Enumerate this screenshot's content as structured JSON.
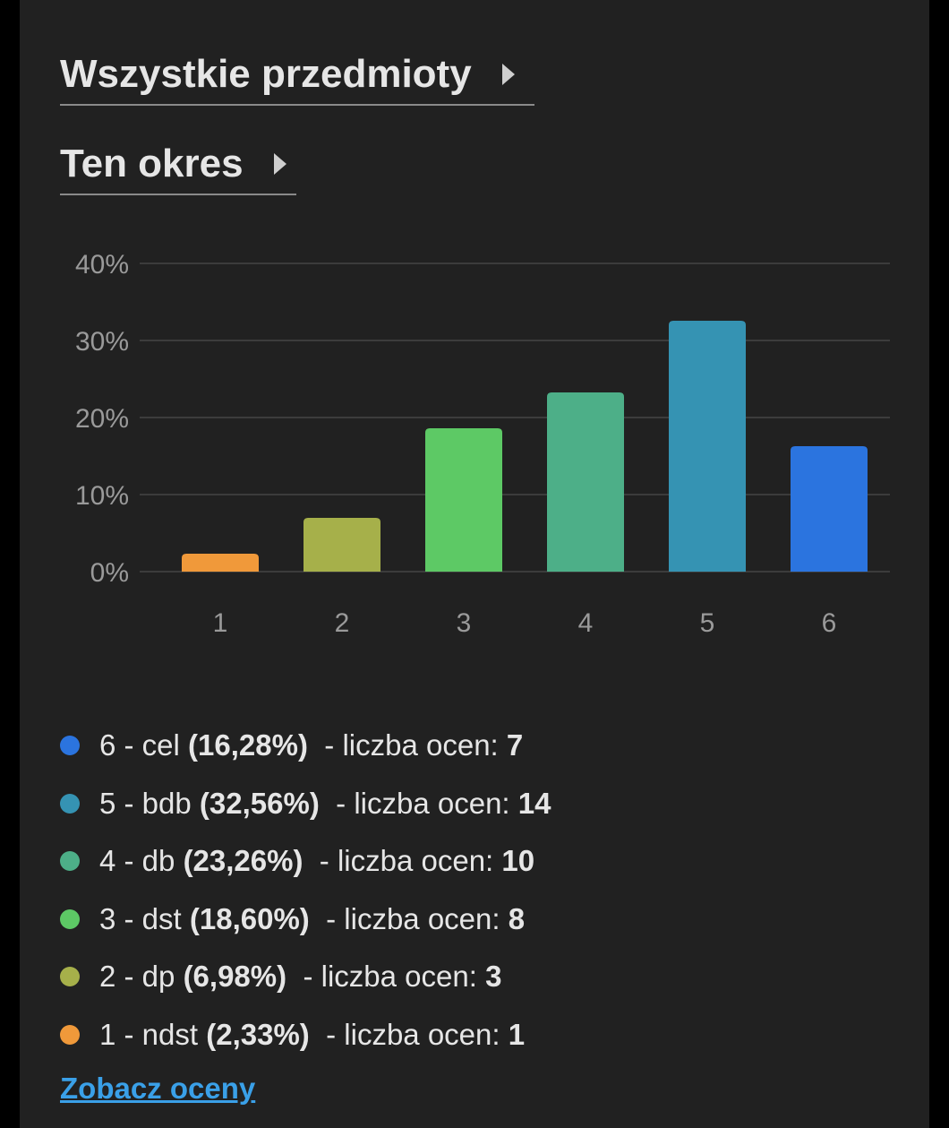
{
  "filters": {
    "subject_label": "Wszystkie przedmioty",
    "period_label": "Ten okres"
  },
  "chart_data": {
    "type": "bar",
    "categories": [
      "1",
      "2",
      "3",
      "4",
      "5",
      "6"
    ],
    "values": [
      2.33,
      6.98,
      18.6,
      23.26,
      32.56,
      16.28
    ],
    "colors": [
      "#f0993a",
      "#a6b04a",
      "#5dc965",
      "#4daf88",
      "#3593b3",
      "#2b74df"
    ],
    "y_ticks": [
      "0%",
      "10%",
      "20%",
      "30%",
      "40%"
    ],
    "ylim": [
      0,
      40
    ],
    "grid": true
  },
  "legend": [
    {
      "color": "#2b74df",
      "name": "6 - cel",
      "percent": "(16,28%)",
      "count_label": "- liczba ocen:",
      "count": "7"
    },
    {
      "color": "#3593b3",
      "name": "5 - bdb",
      "percent": "(32,56%)",
      "count_label": "- liczba ocen:",
      "count": "14"
    },
    {
      "color": "#4daf88",
      "name": "4 - db",
      "percent": "(23,26%)",
      "count_label": "- liczba ocen:",
      "count": "10"
    },
    {
      "color": "#5dc965",
      "name": "3 - dst",
      "percent": "(18,60%)",
      "count_label": "- liczba ocen:",
      "count": "8"
    },
    {
      "color": "#a6b04a",
      "name": "2 - dp",
      "percent": "(6,98%)",
      "count_label": "- liczba ocen:",
      "count": "3"
    },
    {
      "color": "#f0993a",
      "name": "1 - ndst",
      "percent": "(2,33%)",
      "count_label": "- liczba ocen:",
      "count": "1"
    }
  ],
  "link_label": "Zobacz oceny"
}
